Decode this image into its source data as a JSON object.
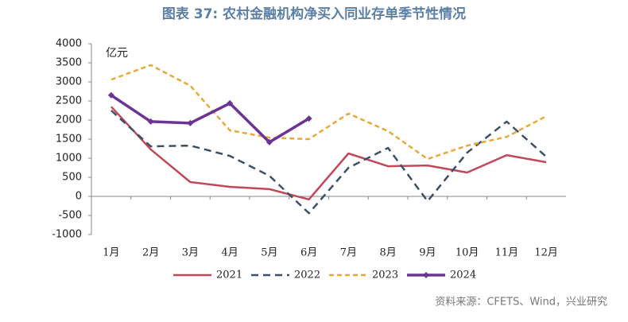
{
  "chart_data": {
    "type": "line",
    "title": "图表 37: 农村金融机构净买入同业存单季节性情况",
    "y_label": "亿元",
    "source": "资料来源：CFETS、Wind，兴业研究",
    "categories": [
      "1月",
      "2月",
      "3月",
      "4月",
      "5月",
      "6月",
      "7月",
      "8月",
      "9月",
      "10月",
      "11月",
      "12月"
    ],
    "series": [
      {
        "name": "2021",
        "color": "#c0485a",
        "style": "solid",
        "values": [
          2350,
          1230,
          375,
          250,
          190,
          -80,
          1125,
          790,
          810,
          625,
          1080,
          895
        ]
      },
      {
        "name": "2022",
        "color": "#3d5068",
        "style": "dashed",
        "values": [
          2250,
          1310,
          1330,
          1060,
          540,
          -440,
          750,
          1270,
          -125,
          1145,
          1960,
          1040
        ]
      },
      {
        "name": "2023",
        "color": "#e8a93a",
        "style": "dotted-dash",
        "values": [
          3060,
          3440,
          2900,
          1730,
          1540,
          1500,
          2170,
          1710,
          980,
          1330,
          1560,
          2100
        ]
      },
      {
        "name": "2024",
        "color": "#6b3394",
        "style": "solid-bold",
        "marker": true,
        "values": [
          2650,
          1960,
          1920,
          2440,
          1420,
          2040,
          null,
          null,
          null,
          null,
          null,
          null
        ]
      }
    ],
    "ylim": [
      -1000,
      4000
    ],
    "yticks": [
      -1000,
      -500,
      0,
      500,
      1000,
      1500,
      2000,
      2500,
      3000,
      3500,
      4000
    ],
    "grid": false,
    "legend": "bottom"
  }
}
